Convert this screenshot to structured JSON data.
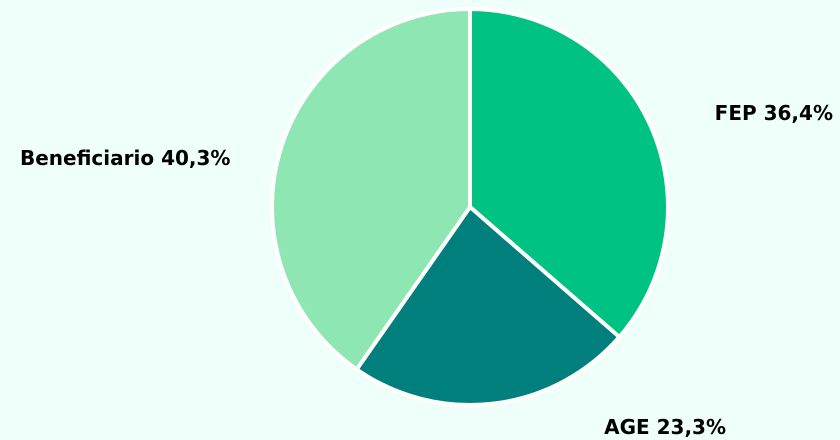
{
  "chart_data": {
    "type": "pie",
    "title": "",
    "categories": [
      "FEP",
      "AGE",
      "Beneficiario"
    ],
    "values": [
      36.4,
      23.3,
      40.3
    ],
    "labels": [
      "FEP 36,4%",
      "AGE 23,3%",
      "Beneficiario 40,3%"
    ],
    "colors": [
      "#00c383",
      "#007f7d",
      "#8ee6b3"
    ],
    "background": "#effff9",
    "legend": "none"
  }
}
